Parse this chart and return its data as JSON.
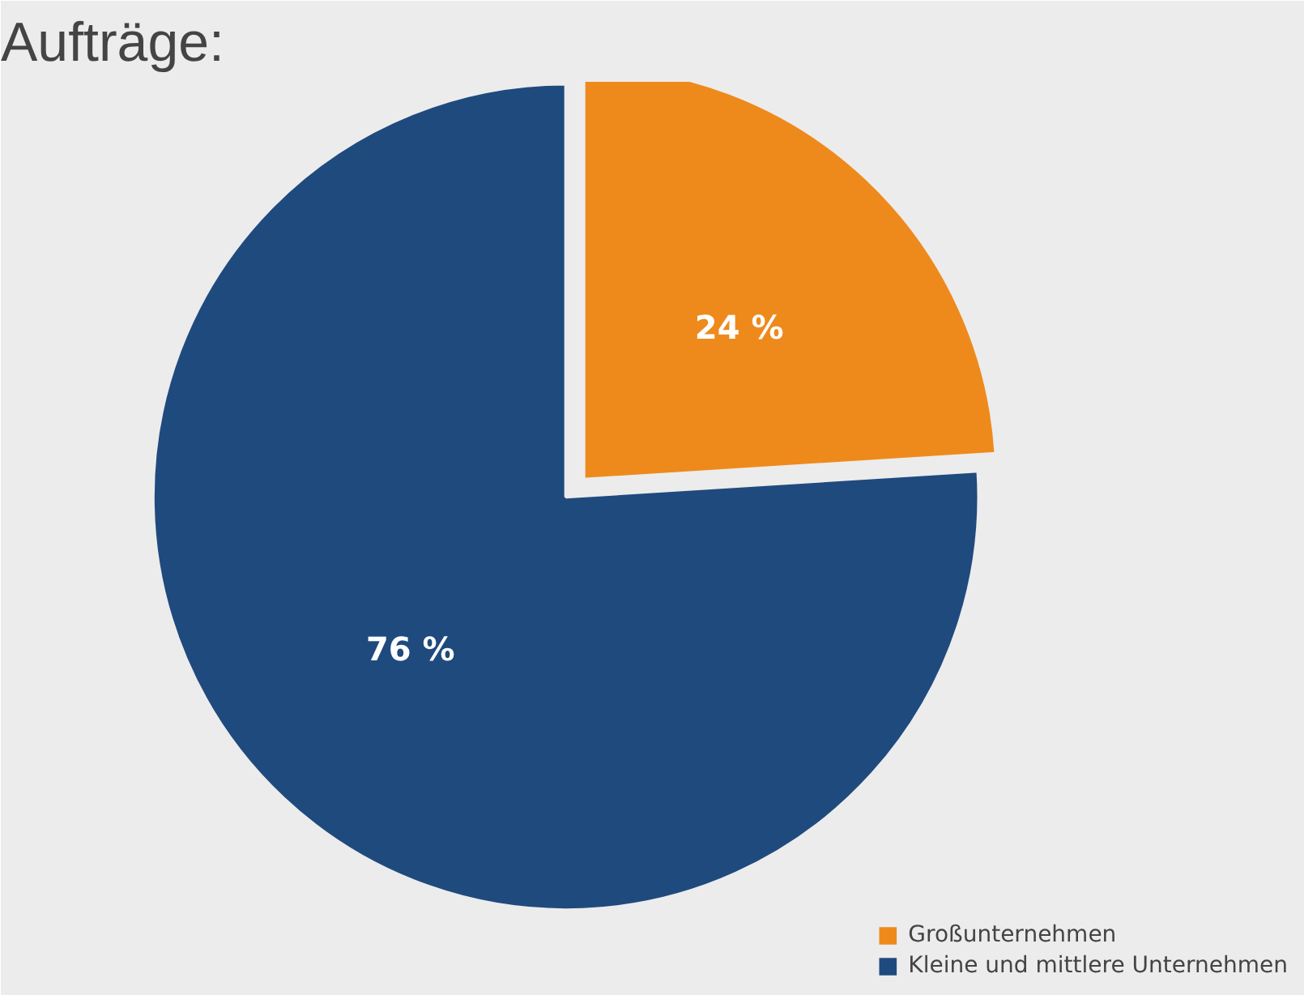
{
  "chart_data": {
    "type": "pie",
    "title": "Aufträge:",
    "categories": [
      "Großunternehmen",
      "Kleine und mittlere Unternehmen"
    ],
    "values": [
      24,
      76
    ],
    "colors": [
      "#ee8a1c",
      "#1f4a7e"
    ],
    "value_labels": [
      "24 %",
      "76 %"
    ],
    "legend": "bottom right"
  }
}
